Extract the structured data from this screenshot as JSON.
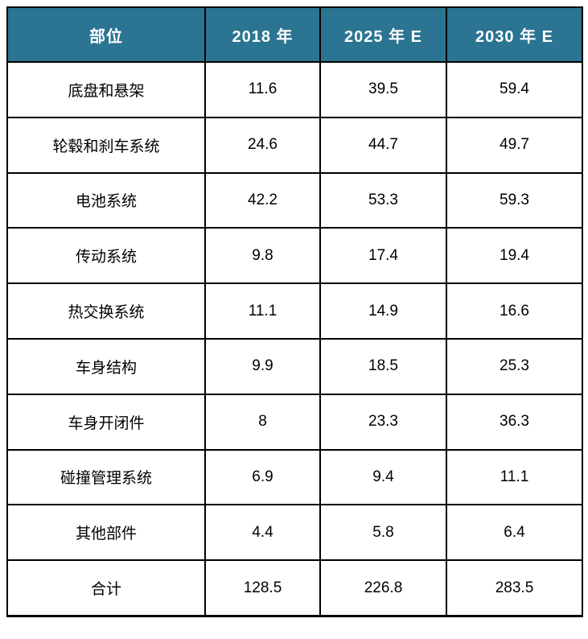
{
  "colors": {
    "header_bg": "#2b7492",
    "header_text": "#ffffff",
    "body_text": "#000000",
    "border": "#000000"
  },
  "chart_data": {
    "type": "table",
    "columns": [
      "部位",
      "2018 年",
      "2025 年 E",
      "2030 年 E"
    ],
    "rows": [
      [
        "底盘和悬架",
        "11.6",
        "39.5",
        "59.4"
      ],
      [
        "轮毂和刹车系统",
        "24.6",
        "44.7",
        "49.7"
      ],
      [
        "电池系统",
        "42.2",
        "53.3",
        "59.3"
      ],
      [
        "传动系统",
        "9.8",
        "17.4",
        "19.4"
      ],
      [
        "热交换系统",
        "11.1",
        "14.9",
        "16.6"
      ],
      [
        "车身结构",
        "9.9",
        "18.5",
        "25.3"
      ],
      [
        "车身开闭件",
        "8",
        "23.3",
        "36.3"
      ],
      [
        "碰撞管理系统",
        "6.9",
        "9.4",
        "11.1"
      ],
      [
        "其他部件",
        "4.4",
        "5.8",
        "6.4"
      ],
      [
        "合计",
        "128.5",
        "226.8",
        "283.5"
      ]
    ],
    "total_row_label": "合计",
    "layout": {
      "grid": true,
      "header_position": "top",
      "alignment": "center"
    }
  }
}
